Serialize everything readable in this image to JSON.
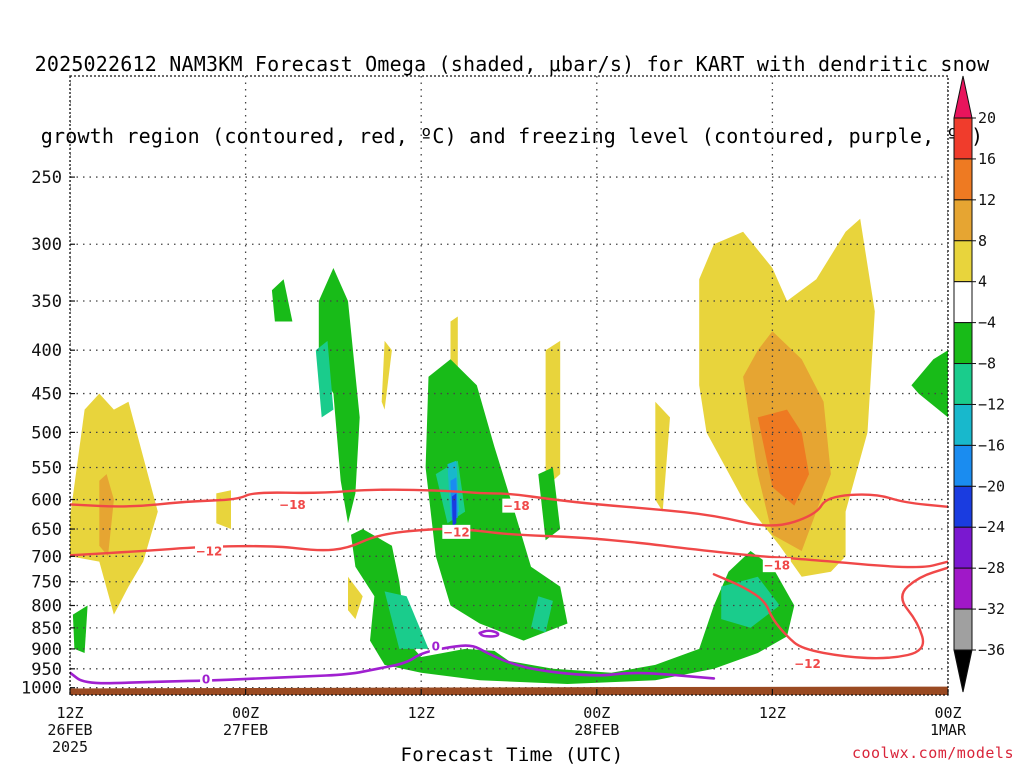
{
  "title": {
    "line1": "2025022612 NAM3KM Forecast Omega (shaded, μbar/s) for KART with dendritic snow",
    "line2": "growth region (contoured, red, ºC) and freezing level (contoured, purple, ºC)"
  },
  "credit": "coolwx.com/models",
  "chart_data": {
    "type": "heatmap",
    "xlabel": "Forecast Time (UTC)",
    "ylabel": "",
    "y_scale": "log",
    "ylim": [
      1020,
      190
    ],
    "x_tick_labels": [
      {
        "time_h": 0,
        "line1": "12Z",
        "line2": "26FEB",
        "line3": "2025"
      },
      {
        "time_h": 12,
        "line1": "00Z",
        "line2": "27FEB",
        "line3": ""
      },
      {
        "time_h": 24,
        "line1": "12Z",
        "line2": "",
        "line3": ""
      },
      {
        "time_h": 36,
        "line1": "00Z",
        "line2": "28FEB",
        "line3": ""
      },
      {
        "time_h": 48,
        "line1": "12Z",
        "line2": "",
        "line3": ""
      },
      {
        "time_h": 60,
        "line1": "00Z",
        "line2": "1MAR",
        "line3": ""
      }
    ],
    "y_ticks": [
      250,
      300,
      350,
      400,
      450,
      500,
      550,
      600,
      650,
      700,
      750,
      800,
      850,
      900,
      950,
      1000
    ],
    "grid": true,
    "colorbar": {
      "labels": [
        "20",
        "16",
        "12",
        "8",
        "4",
        "−4",
        "−8",
        "−12",
        "−16",
        "−20",
        "−24",
        "−28",
        "−32",
        "−36"
      ],
      "colors": [
        "#e8145c",
        "#f03c2c",
        "#ee7a22",
        "#e6a532",
        "#e8d43c",
        "#ffffff",
        "#18bb18",
        "#1acc8c",
        "#18b8cc",
        "#1a8cf0",
        "#1a3ce0",
        "#7a18d0",
        "#a018c8",
        "#a0a0a0",
        "#000000"
      ]
    },
    "contour_labels": [
      {
        "series": "dendritic",
        "text": "−18",
        "time_h": 15.2,
        "p": 608
      },
      {
        "series": "dendritic",
        "text": "−18",
        "time_h": 30.5,
        "p": 610
      },
      {
        "series": "dendritic",
        "text": "−12",
        "time_h": 9.5,
        "p": 690
      },
      {
        "series": "dendritic",
        "text": "−12",
        "time_h": 26.4,
        "p": 655
      },
      {
        "series": "dendritic",
        "text": "−18",
        "time_h": 48.3,
        "p": 717
      },
      {
        "series": "dendritic",
        "text": "−12",
        "time_h": 50.4,
        "p": 936
      },
      {
        "series": "freezing",
        "text": "0",
        "time_h": 9.3,
        "p": 976
      },
      {
        "series": "freezing",
        "text": "0",
        "time_h": 25.0,
        "p": 893
      }
    ],
    "series": [
      {
        "name": "-18",
        "color": "#f04848",
        "kind": "contour",
        "points": [
          [
            0,
            608
          ],
          [
            4,
            613
          ],
          [
            8,
            603
          ],
          [
            11.5,
            600
          ],
          [
            12.5,
            588
          ],
          [
            17,
            590
          ],
          [
            21,
            583
          ],
          [
            26,
            586
          ],
          [
            28,
            590
          ],
          [
            30,
            590
          ],
          [
            33,
            600
          ],
          [
            36,
            608
          ],
          [
            40,
            616
          ],
          [
            44,
            626
          ],
          [
            48,
            650
          ],
          [
            51,
            625
          ],
          [
            51.7,
            595
          ],
          [
            55,
            590
          ],
          [
            57,
            605
          ],
          [
            60,
            612
          ]
        ]
      },
      {
        "name": "-12",
        "color": "#f04848",
        "kind": "contour",
        "points": [
          [
            0,
            698
          ],
          [
            5,
            690
          ],
          [
            9,
            682
          ],
          [
            14,
            680
          ],
          [
            17,
            690
          ],
          [
            19,
            685
          ],
          [
            21,
            660
          ],
          [
            24.5,
            650
          ],
          [
            27,
            650
          ],
          [
            30,
            660
          ],
          [
            35,
            665
          ],
          [
            39,
            675
          ],
          [
            42,
            685
          ],
          [
            47,
            700
          ],
          [
            50,
            705
          ],
          [
            58,
            725
          ],
          [
            60,
            710
          ]
        ]
      },
      {
        "name": "-12 low",
        "color": "#f04848",
        "kind": "contour",
        "points": [
          [
            44,
            735
          ],
          [
            46,
            760
          ],
          [
            47.5,
            790
          ],
          [
            48,
            830
          ],
          [
            49,
            870
          ],
          [
            50,
            900
          ],
          [
            53,
            920
          ],
          [
            56,
            925
          ],
          [
            58.5,
            905
          ],
          [
            58,
            840
          ],
          [
            56.5,
            780
          ],
          [
            58,
            740
          ],
          [
            60,
            722
          ]
        ]
      },
      {
        "name": "0",
        "color": "#a020d0",
        "kind": "contour",
        "points": [
          [
            0,
            960
          ],
          [
            1,
            990
          ],
          [
            5,
            985
          ],
          [
            10,
            980
          ],
          [
            13,
            975
          ],
          [
            16,
            970
          ],
          [
            19,
            965
          ],
          [
            21,
            950
          ],
          [
            23,
            935
          ],
          [
            24,
            910
          ],
          [
            26,
            895
          ],
          [
            27.5,
            890
          ],
          [
            28.5,
            910
          ],
          [
            30,
            935
          ],
          [
            32,
            955
          ],
          [
            36,
            970
          ],
          [
            38,
            960
          ],
          [
            40,
            962
          ],
          [
            44,
            975
          ]
        ]
      },
      {
        "name": "0 loop",
        "color": "#a020d0",
        "kind": "contour",
        "points": [
          [
            28,
            862
          ],
          [
            28.6,
            855
          ],
          [
            29.3,
            862
          ],
          [
            29.2,
            870
          ],
          [
            28.2,
            870
          ],
          [
            28,
            862
          ]
        ]
      }
    ],
    "omega_regions": [
      {
        "level": "4",
        "points": [
          [
            0,
            630
          ],
          [
            1,
            470
          ],
          [
            2,
            450
          ],
          [
            3,
            470
          ],
          [
            4,
            460
          ],
          [
            6,
            620
          ],
          [
            5,
            710
          ],
          [
            4,
            760
          ],
          [
            3,
            820
          ],
          [
            2,
            710
          ],
          [
            0,
            700
          ]
        ]
      },
      {
        "level": "8",
        "points": [
          [
            2,
            570
          ],
          [
            2.5,
            560
          ],
          [
            3,
            600
          ],
          [
            2.6,
            700
          ],
          [
            2,
            680
          ]
        ]
      },
      {
        "level": "4",
        "points": [
          [
            43,
            330
          ],
          [
            44,
            300
          ],
          [
            46,
            290
          ],
          [
            48,
            320
          ],
          [
            49,
            350
          ],
          [
            51,
            330
          ],
          [
            53,
            290
          ],
          [
            54,
            280
          ],
          [
            55,
            360
          ],
          [
            54.5,
            500
          ],
          [
            53,
            620
          ],
          [
            53,
            700
          ],
          [
            52,
            730
          ],
          [
            50,
            740
          ],
          [
            48.5,
            680
          ],
          [
            46,
            600
          ],
          [
            43.5,
            500
          ],
          [
            43,
            440
          ]
        ]
      },
      {
        "level": "8",
        "points": [
          [
            46,
            430
          ],
          [
            47,
            400
          ],
          [
            48,
            380
          ],
          [
            50,
            410
          ],
          [
            51.5,
            460
          ],
          [
            52,
            560
          ],
          [
            51,
            620
          ],
          [
            50,
            690
          ],
          [
            48,
            660
          ],
          [
            47,
            560
          ]
        ]
      },
      {
        "level": "12",
        "points": [
          [
            47,
            480
          ],
          [
            49,
            470
          ],
          [
            50,
            500
          ],
          [
            50.5,
            560
          ],
          [
            49.5,
            610
          ],
          [
            48,
            580
          ]
        ]
      },
      {
        "level": "4",
        "points": [
          [
            32.5,
            400
          ],
          [
            33.5,
            390
          ],
          [
            33.5,
            560
          ],
          [
            32.5,
            580
          ]
        ]
      },
      {
        "level": "4",
        "points": [
          [
            40,
            460
          ],
          [
            41,
            480
          ],
          [
            40.5,
            620
          ],
          [
            40,
            600
          ]
        ]
      },
      {
        "level": "4",
        "points": [
          [
            10,
            590
          ],
          [
            11,
            585
          ],
          [
            11,
            650
          ],
          [
            10,
            640
          ]
        ]
      },
      {
        "level": "4",
        "points": [
          [
            19,
            740
          ],
          [
            20,
            780
          ],
          [
            19.5,
            830
          ],
          [
            19,
            810
          ]
        ]
      },
      {
        "level": "4",
        "points": [
          [
            26,
            370
          ],
          [
            26.5,
            365
          ],
          [
            26.5,
            420
          ],
          [
            26,
            420
          ]
        ]
      },
      {
        "level": "4",
        "points": [
          [
            21.5,
            390
          ],
          [
            22,
            400
          ],
          [
            21.5,
            470
          ],
          [
            21.3,
            460
          ]
        ]
      },
      {
        "level": "-4",
        "points": [
          [
            13.8,
            340
          ],
          [
            14.6,
            330
          ],
          [
            15.2,
            370
          ],
          [
            14,
            370
          ]
        ]
      },
      {
        "level": "-4",
        "points": [
          [
            17,
            350
          ],
          [
            18,
            320
          ],
          [
            19,
            350
          ],
          [
            19.8,
            480
          ],
          [
            19.5,
            590
          ],
          [
            19,
            640
          ],
          [
            18.5,
            570
          ],
          [
            18,
            450
          ],
          [
            17,
            420
          ]
        ]
      },
      {
        "level": "-4",
        "points": [
          [
            19.2,
            660
          ],
          [
            20,
            650
          ],
          [
            22,
            680
          ],
          [
            22.5,
            750
          ],
          [
            23,
            880
          ],
          [
            24,
            920
          ],
          [
            27,
            900
          ],
          [
            29,
            905
          ],
          [
            30,
            930
          ],
          [
            33,
            950
          ],
          [
            37,
            960
          ],
          [
            40,
            940
          ],
          [
            43,
            900
          ],
          [
            44,
            800
          ],
          [
            45,
            730
          ],
          [
            46.5,
            690
          ],
          [
            48,
            720
          ],
          [
            49.5,
            800
          ],
          [
            49,
            870
          ],
          [
            47,
            910
          ],
          [
            44,
            950
          ],
          [
            40,
            980
          ],
          [
            34,
            990
          ],
          [
            28,
            980
          ],
          [
            24,
            960
          ],
          [
            21.5,
            940
          ],
          [
            20.5,
            880
          ],
          [
            20.8,
            780
          ],
          [
            19.5,
            720
          ]
        ]
      },
      {
        "level": "-4",
        "points": [
          [
            24.5,
            430
          ],
          [
            26,
            410
          ],
          [
            27.8,
            440
          ],
          [
            29,
            520
          ],
          [
            30.5,
            630
          ],
          [
            31.5,
            720
          ],
          [
            33.5,
            760
          ],
          [
            34,
            840
          ],
          [
            31,
            880
          ],
          [
            28,
            840
          ],
          [
            26,
            800
          ],
          [
            25,
            700
          ],
          [
            24.3,
            550
          ]
        ]
      },
      {
        "level": "-4",
        "points": [
          [
            32,
            560
          ],
          [
            33,
            550
          ],
          [
            33.5,
            650
          ],
          [
            32.5,
            670
          ]
        ]
      },
      {
        "level": "-4",
        "points": [
          [
            57.5,
            440
          ],
          [
            59,
            410
          ],
          [
            60,
            400
          ],
          [
            60,
            480
          ],
          [
            58,
            450
          ]
        ]
      },
      {
        "level": "-4",
        "points": [
          [
            0.2,
            820
          ],
          [
            1.2,
            800
          ],
          [
            1,
            910
          ],
          [
            0.3,
            900
          ]
        ]
      },
      {
        "level": "-8",
        "points": [
          [
            16.8,
            400
          ],
          [
            17.6,
            390
          ],
          [
            18,
            470
          ],
          [
            17.2,
            480
          ]
        ]
      },
      {
        "level": "-8",
        "points": [
          [
            21.5,
            770
          ],
          [
            23,
            780
          ],
          [
            24.5,
            900
          ],
          [
            22.5,
            900
          ]
        ]
      },
      {
        "level": "-8",
        "points": [
          [
            44.5,
            760
          ],
          [
            47,
            740
          ],
          [
            48.5,
            800
          ],
          [
            46.5,
            850
          ],
          [
            44.5,
            830
          ]
        ]
      },
      {
        "level": "-8",
        "points": [
          [
            32,
            780
          ],
          [
            33,
            790
          ],
          [
            32.5,
            860
          ],
          [
            31.5,
            850
          ]
        ]
      },
      {
        "level": "-8",
        "points": [
          [
            25,
            560
          ],
          [
            26.5,
            540
          ],
          [
            27,
            620
          ],
          [
            25.8,
            640
          ]
        ]
      },
      {
        "level": "-12",
        "points": [
          [
            25.8,
            545
          ],
          [
            26.4,
            540
          ],
          [
            26.6,
            620
          ],
          [
            26,
            630
          ]
        ]
      },
      {
        "level": "-16",
        "points": [
          [
            26,
            570
          ],
          [
            26.4,
            565
          ],
          [
            26.5,
            630
          ],
          [
            26.1,
            635
          ]
        ]
      },
      {
        "level": "-20",
        "points": [
          [
            26.1,
            595
          ],
          [
            26.4,
            590
          ],
          [
            26.4,
            640
          ],
          [
            26.15,
            645
          ]
        ]
      }
    ]
  }
}
